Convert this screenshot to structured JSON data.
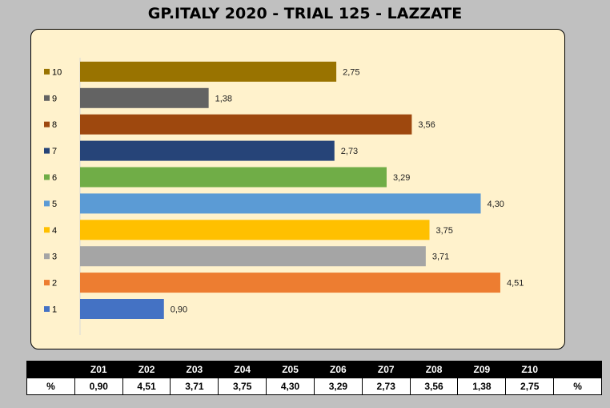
{
  "title": "GP.ITALY 2020 - TRIAL 125 - LAZZATE",
  "chart_data": {
    "type": "bar",
    "orientation": "horizontal",
    "categories": [
      "1",
      "2",
      "3",
      "4",
      "5",
      "6",
      "7",
      "8",
      "9",
      "10"
    ],
    "values": [
      0.9,
      4.51,
      3.71,
      3.75,
      4.3,
      3.29,
      2.73,
      3.56,
      1.38,
      2.75
    ],
    "value_labels": [
      "0,90",
      "4,51",
      "3,71",
      "3,75",
      "4,30",
      "3,29",
      "2,73",
      "3,56",
      "1,38",
      "2,75"
    ],
    "colors": [
      "#4472c4",
      "#ed7d31",
      "#a5a5a5",
      "#ffc000",
      "#5b9bd5",
      "#70ad47",
      "#264478",
      "#9e480e",
      "#636363",
      "#997300"
    ],
    "xlim": [
      0,
      5
    ],
    "grid": false,
    "legend": "left"
  },
  "table": {
    "headers": [
      "",
      "Z01",
      "Z02",
      "Z03",
      "Z04",
      "Z05",
      "Z06",
      "Z07",
      "Z08",
      "Z09",
      "Z10",
      ""
    ],
    "row": [
      "%",
      "0,90",
      "4,51",
      "3,71",
      "3,75",
      "4,30",
      "3,29",
      "2,73",
      "3,56",
      "1,38",
      "2,75",
      "%"
    ]
  }
}
